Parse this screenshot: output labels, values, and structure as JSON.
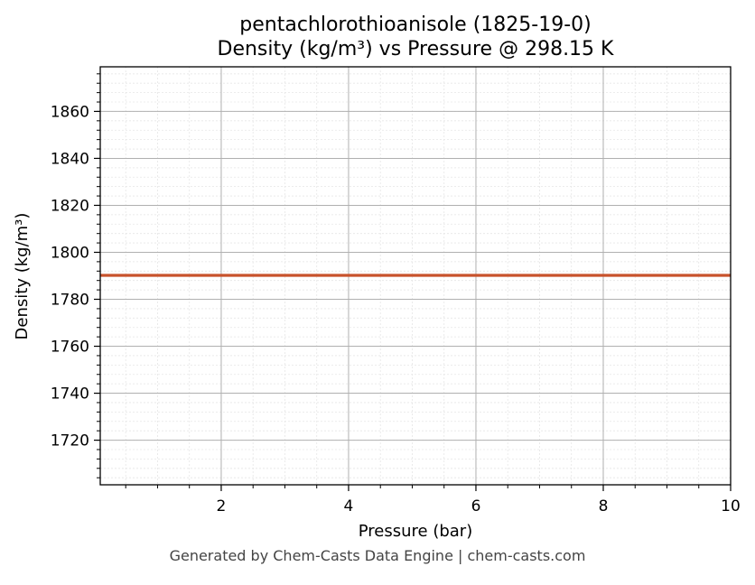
{
  "chart_data": {
    "type": "line",
    "title": "pentachlorothioanisole (1825-19-0)",
    "subtitle": "Density (kg/m³) vs Pressure @ 298.15 K",
    "xlabel": "Pressure (bar)",
    "ylabel": "Density (kg/m³)",
    "xlim": [
      0.1,
      10
    ],
    "ylim": [
      1701,
      1879
    ],
    "x_ticks": [
      2,
      4,
      6,
      8,
      10
    ],
    "y_ticks": [
      1720,
      1740,
      1760,
      1780,
      1800,
      1820,
      1840,
      1860
    ],
    "x_minor_step": 0.5,
    "y_minor_step": 4,
    "grid": true,
    "series": [
      {
        "color": "#c8522b",
        "x": [
          0.1,
          1,
          2,
          3,
          4,
          5,
          6,
          7,
          8,
          9,
          10
        ],
        "y": [
          1790.2,
          1790.2,
          1790.2,
          1790.2,
          1790.2,
          1790.2,
          1790.2,
          1790.2,
          1790.2,
          1790.2,
          1790.2
        ]
      }
    ]
  },
  "footer": "Generated by Chem-Casts Data Engine | chem-casts.com"
}
